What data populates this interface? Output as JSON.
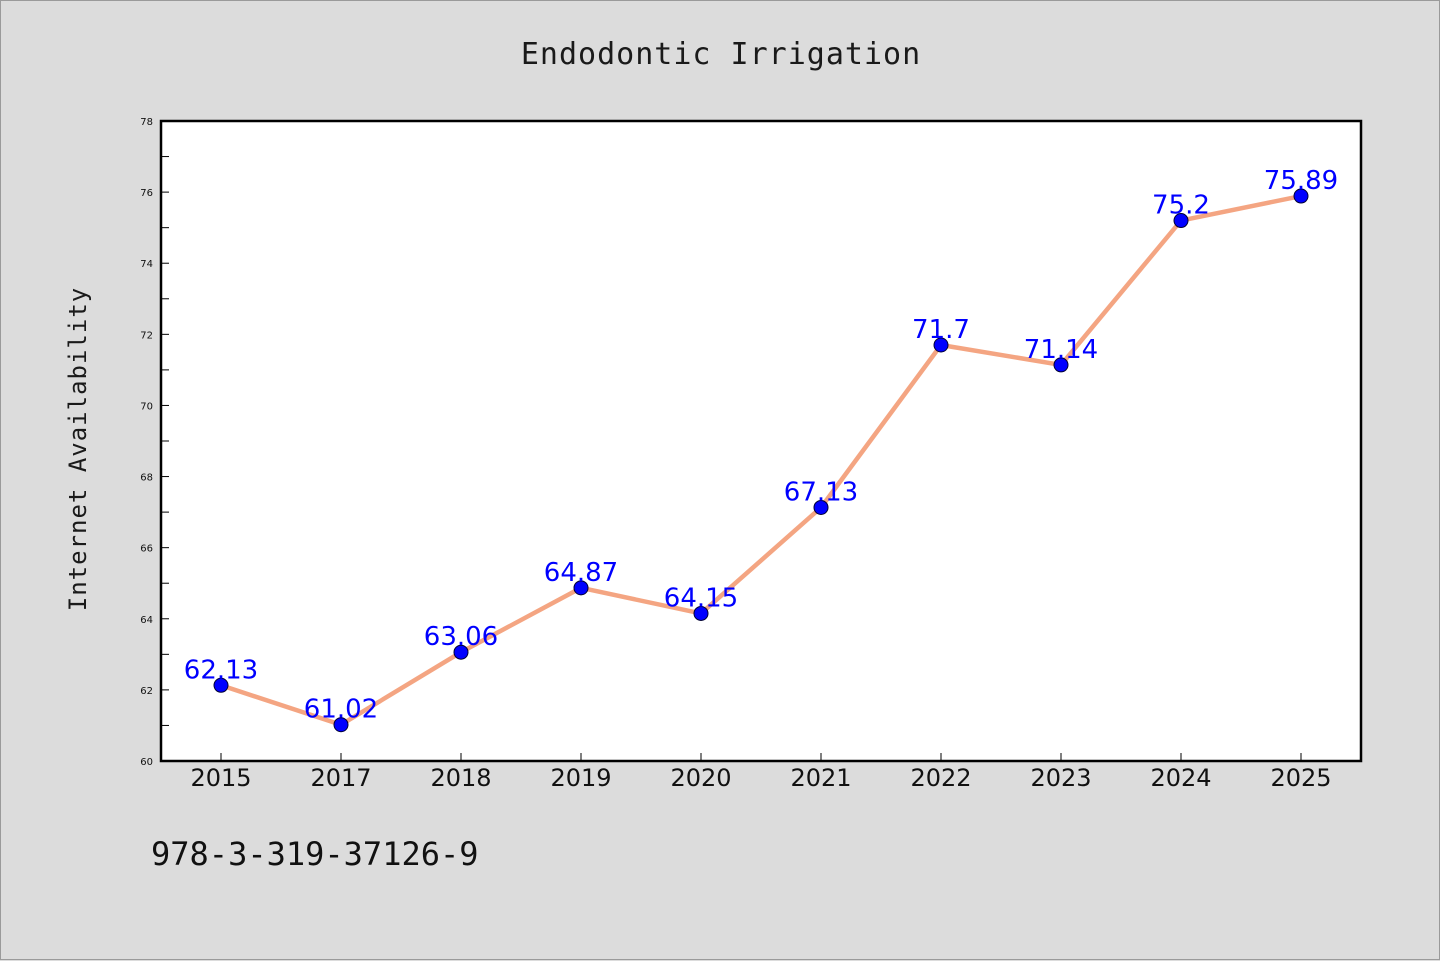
{
  "chart_data": {
    "type": "line",
    "title": "Endodontic Irrigation",
    "xlabel": "",
    "ylabel": "Internet Availability",
    "categories": [
      "2015",
      "2017",
      "2018",
      "2019",
      "2020",
      "2021",
      "2022",
      "2023",
      "2024",
      "2025"
    ],
    "series": [
      {
        "values": [
          62.13,
          61.02,
          63.06,
          64.87,
          64.15,
          67.13,
          71.7,
          71.14,
          75.2,
          75.89
        ],
        "labels": [
          "62.13",
          "61.02",
          "63.06",
          "64.87",
          "64.15",
          "67.13",
          "71.7",
          "71.14",
          "75.2",
          "75.89"
        ],
        "line_color": "#f4a582",
        "marker_color": "#0000ff"
      }
    ],
    "ylim": [
      60,
      78
    ],
    "yticks": [
      "60",
      "62",
      "64",
      "66",
      "68",
      "70",
      "72",
      "74",
      "76",
      "78"
    ],
    "grid": false,
    "legend": "none"
  },
  "footer": {
    "text": "978-3-319-37126-9"
  }
}
